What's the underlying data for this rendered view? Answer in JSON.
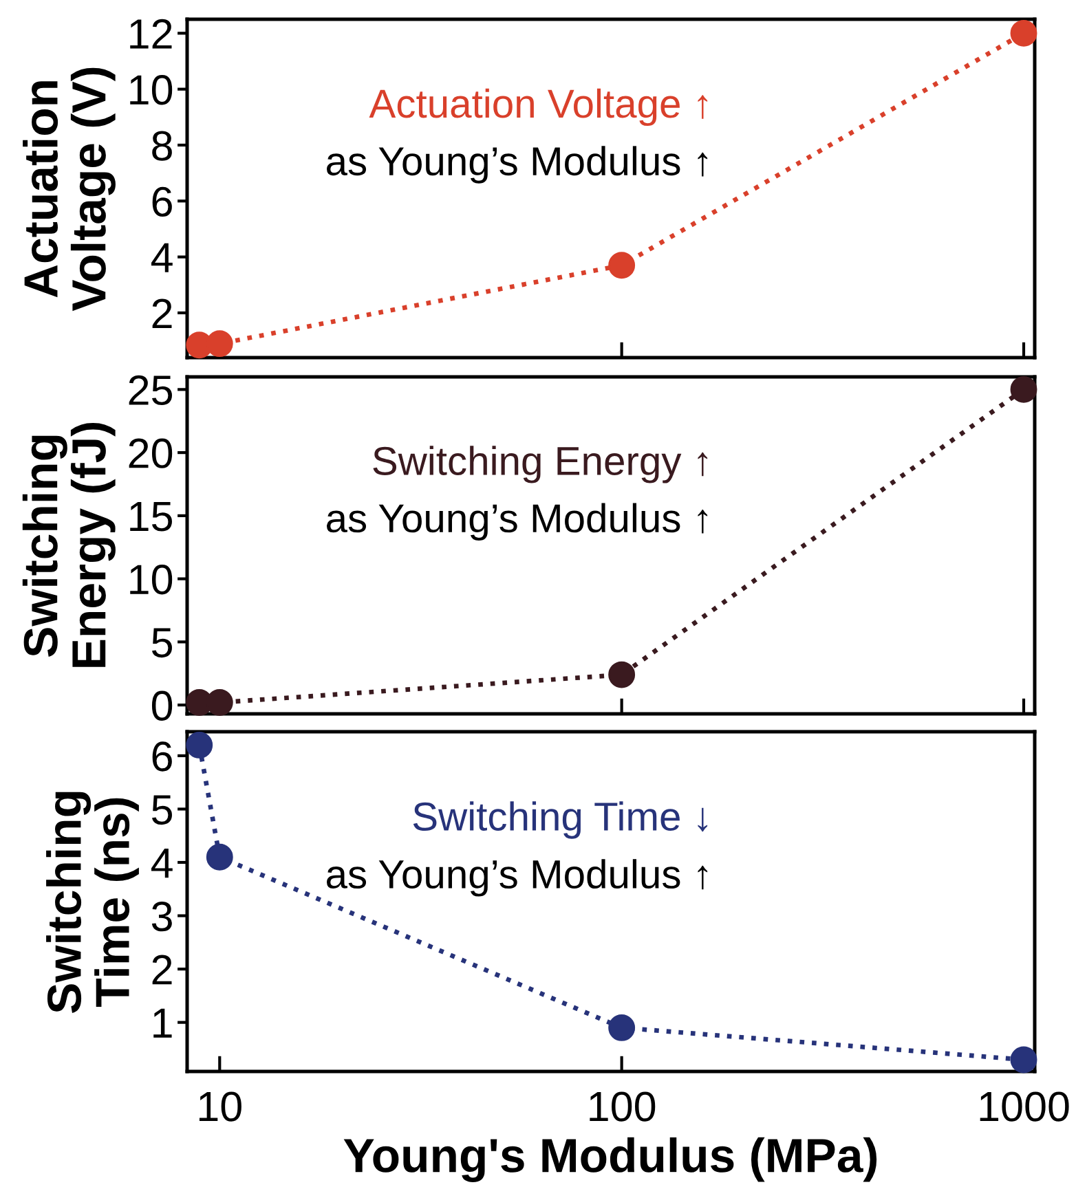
{
  "chart_data": [
    {
      "type": "line",
      "ylabel": "Actuation\nVoltage (V)",
      "x": [
        8.9,
        10,
        100,
        1000
      ],
      "log": "x",
      "xlim": [
        8.3,
        1065
      ],
      "xticks": [
        10,
        100,
        1000
      ],
      "ylim": [
        0.4,
        12.5
      ],
      "yticks": [
        2,
        4,
        6,
        8,
        10,
        12
      ],
      "tick_labels": "y",
      "marker": "circle",
      "line_style": "dotted",
      "series": [
        {
          "color": "#d9402b",
          "values": [
            0.85,
            0.9,
            3.7,
            12
          ]
        }
      ],
      "annotations": [
        "Actuation Voltage ↑",
        "as Young’s Modulus ↑"
      ]
    },
    {
      "type": "line",
      "ylabel": "Switching\nEnergy (fJ)",
      "x": [
        8.9,
        10,
        100,
        1000
      ],
      "log": "x",
      "xlim": [
        8.3,
        1065
      ],
      "xticks": [
        10,
        100,
        1000
      ],
      "ylim": [
        -0.7,
        26
      ],
      "yticks": [
        0,
        5,
        10,
        15,
        20,
        25
      ],
      "tick_labels": "y",
      "marker": "circle",
      "line_style": "dotted",
      "series": [
        {
          "color": "#3a1a1f",
          "values": [
            0.2,
            0.2,
            2.4,
            25
          ]
        }
      ],
      "annotations": [
        "Switching Energy ↑",
        "as Young’s Modulus ↑"
      ]
    },
    {
      "type": "line",
      "ylabel": "Switching\nTime (ns)",
      "xlabel": "Young's Modulus (MPa)",
      "x": [
        8.9,
        10,
        100,
        1000
      ],
      "log": "x",
      "xlim": [
        8.3,
        1065
      ],
      "xticks": [
        10,
        100,
        1000
      ],
      "ylim": [
        0.08,
        6.45
      ],
      "yticks": [
        1,
        2,
        3,
        4,
        5,
        6
      ],
      "marker": "circle",
      "line_style": "dotted",
      "series": [
        {
          "color": "#27337a",
          "values": [
            6.2,
            4.1,
            0.9,
            0.3
          ]
        }
      ],
      "annotations": [
        "Switching Time ↓",
        "as Young’s Modulus ↑"
      ]
    }
  ]
}
